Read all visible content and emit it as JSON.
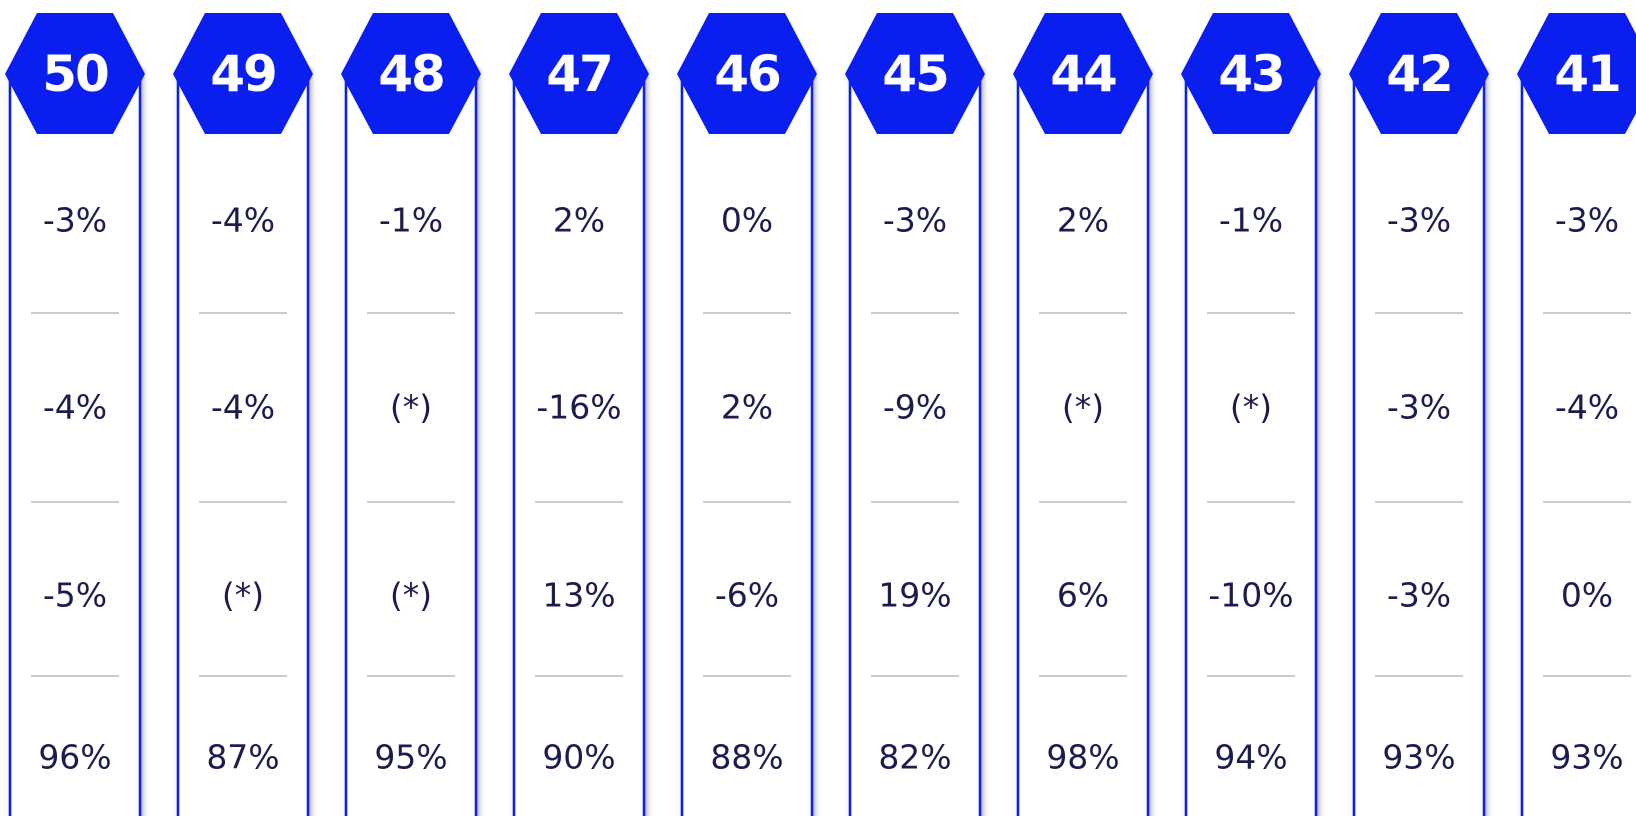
{
  "columns": [
    {
      "label": "50",
      "cells": [
        "-3%",
        "-4%",
        "-5%",
        "96%"
      ]
    },
    {
      "label": "49",
      "cells": [
        "-4%",
        "-4%",
        "(*)",
        "87%"
      ]
    },
    {
      "label": "48",
      "cells": [
        "-1%",
        "(*)",
        "(*)",
        "95%"
      ]
    },
    {
      "label": "47",
      "cells": [
        "2%",
        "-16%",
        "13%",
        "90%"
      ]
    },
    {
      "label": "46",
      "cells": [
        "0%",
        "2%",
        "-6%",
        "88%"
      ]
    },
    {
      "label": "45",
      "cells": [
        "-3%",
        "-9%",
        "19%",
        "82%"
      ]
    },
    {
      "label": "44",
      "cells": [
        "2%",
        "(*)",
        "6%",
        "98%"
      ]
    },
    {
      "label": "43",
      "cells": [
        "-1%",
        "(*)",
        "-10%",
        "94%"
      ]
    },
    {
      "label": "42",
      "cells": [
        "-3%",
        "-3%",
        "-3%",
        "93%"
      ]
    },
    {
      "label": "41",
      "cells": [
        "-3%",
        "-4%",
        "0%",
        "93%"
      ]
    }
  ]
}
